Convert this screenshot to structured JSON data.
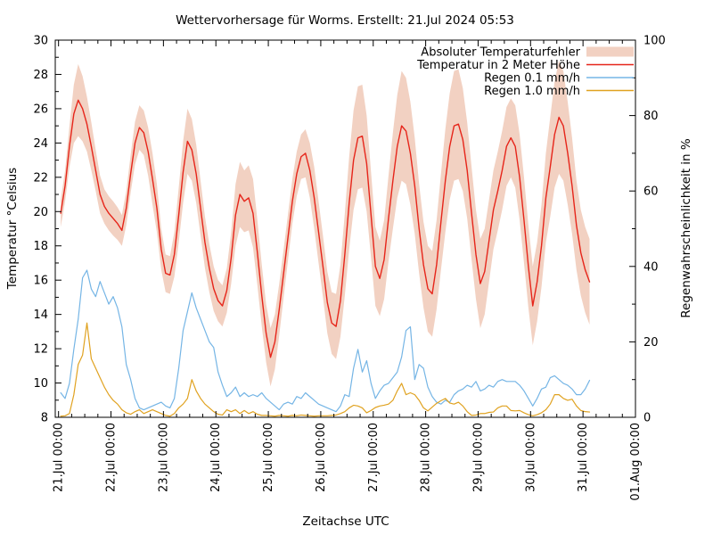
{
  "chart_data": {
    "type": "line",
    "title": "Wettervorhersage für Worms. Erstellt: 21.Jul 2024 05:53",
    "xlabel": "Zeitachse UTC",
    "ylabel_left": "Temperatur °Celsius",
    "ylabel_right": "Regenwahrscheinlichkeit in %",
    "x_tick_labels": [
      "21.Jul 00:00",
      "22.Jul 00:00",
      "23.Jul 00:00",
      "24.Jul 00:00",
      "25.Jul 00:00",
      "26.Jul 00:00",
      "27.Jul 00:00",
      "28.Jul 00:00",
      "29.Jul 00:00",
      "30.Jul 00:00",
      "31.Jul 00:00",
      "01.Aug 00:00"
    ],
    "x_major_step_hours": 24,
    "x_minor_step_hours": 6,
    "x_range_hours": [
      -1.5,
      264
    ],
    "y_left_range": [
      8,
      30
    ],
    "y_left_ticks": [
      8,
      10,
      12,
      14,
      16,
      18,
      20,
      22,
      24,
      26,
      28,
      30
    ],
    "y_right_range": [
      0,
      100
    ],
    "y_right_ticks": [
      0,
      20,
      40,
      60,
      80,
      100
    ],
    "grid": false,
    "legend_position": "top-right-inside",
    "legend": [
      {
        "label": "Absoluter Temperaturfehler",
        "swatch": "band"
      },
      {
        "label": "Temperatur in 2 Meter Höhe",
        "swatch": "line",
        "series": "temperature_c"
      },
      {
        "label": "Regen 0.1 mm/h",
        "swatch": "line",
        "series": "rain_01_pct"
      },
      {
        "label": "Regen 1.0 mm/h",
        "swatch": "line",
        "series": "rain_10_pct"
      }
    ],
    "colors": {
      "error_band": "#f2d1c2",
      "temperature": "#e6251a",
      "rain01": "#75b5e5",
      "rain10": "#e0a220",
      "axis": "#000000",
      "background": "#ffffff"
    },
    "series": {
      "hours_from_21jul": [
        1,
        3,
        5,
        7,
        9,
        11,
        13,
        15,
        17,
        19,
        21,
        23,
        25,
        27,
        29,
        31,
        33,
        35,
        37,
        39,
        41,
        43,
        45,
        47,
        49,
        51,
        53,
        55,
        57,
        59,
        61,
        63,
        65,
        67,
        69,
        71,
        73,
        75,
        77,
        79,
        81,
        83,
        85,
        87,
        89,
        91,
        93,
        95,
        97,
        99,
        101,
        103,
        105,
        107,
        109,
        111,
        113,
        115,
        117,
        119,
        121,
        123,
        125,
        127,
        129,
        131,
        133,
        135,
        137,
        139,
        141,
        143,
        145,
        147,
        149,
        151,
        153,
        155,
        157,
        159,
        161,
        163,
        165,
        167,
        169,
        171,
        173,
        175,
        177,
        179,
        181,
        183,
        185,
        187,
        189,
        191,
        193,
        195,
        197,
        199,
        201,
        203,
        205,
        207,
        209,
        211,
        213,
        215,
        217,
        219,
        221,
        223,
        225,
        227,
        229,
        231,
        233,
        235,
        237,
        239,
        241,
        243
      ],
      "temperature_c": [
        19.9,
        21.5,
        23.8,
        25.7,
        26.5,
        26.0,
        25.1,
        23.8,
        22.4,
        21.0,
        20.3,
        19.9,
        19.6,
        19.3,
        18.9,
        20.2,
        22.2,
        24.0,
        24.9,
        24.6,
        23.5,
        21.9,
        20.2,
        17.8,
        16.4,
        16.3,
        17.5,
        19.8,
        22.3,
        24.1,
        23.6,
        22.2,
        20.2,
        18.2,
        16.7,
        15.5,
        14.8,
        14.5,
        15.4,
        17.3,
        19.8,
        21.0,
        20.6,
        20.8,
        19.9,
        17.6,
        15.1,
        12.9,
        11.5,
        12.4,
        14.3,
        16.4,
        18.5,
        20.6,
        22.2,
        23.2,
        23.4,
        22.4,
        20.8,
        18.8,
        16.8,
        14.7,
        13.5,
        13.3,
        14.8,
        17.5,
        20.5,
        23.0,
        24.3,
        24.4,
        22.8,
        19.8,
        16.8,
        16.1,
        17.2,
        19.6,
        21.8,
        23.8,
        25.0,
        24.7,
        23.4,
        21.5,
        19.0,
        16.9,
        15.5,
        15.2,
        16.9,
        19.4,
        21.8,
        23.8,
        25.0,
        25.1,
        24.2,
        22.4,
        19.9,
        17.5,
        15.8,
        16.5,
        18.3,
        20.1,
        21.2,
        22.4,
        23.8,
        24.3,
        23.8,
        22.0,
        19.5,
        16.8,
        14.5,
        15.9,
        18.0,
        20.8,
        22.6,
        24.5,
        25.5,
        25.0,
        23.4,
        21.5,
        19.2,
        17.6,
        16.6,
        15.9
      ],
      "temperature_error_halfwidth_c": [
        0.8,
        0.9,
        1.2,
        1.7,
        2.1,
        1.9,
        1.6,
        1.4,
        1.2,
        1.1,
        1.0,
        1.0,
        1.0,
        0.95,
        0.9,
        1.0,
        1.1,
        1.25,
        1.3,
        1.3,
        1.4,
        1.5,
        1.4,
        1.2,
        1.1,
        1.1,
        1.3,
        1.6,
        1.8,
        1.9,
        1.8,
        1.7,
        1.6,
        1.5,
        1.4,
        1.3,
        1.2,
        1.2,
        1.3,
        1.5,
        1.8,
        1.9,
        1.8,
        1.9,
        2.0,
        1.9,
        1.8,
        1.7,
        1.7,
        1.6,
        1.5,
        1.4,
        1.35,
        1.3,
        1.3,
        1.3,
        1.4,
        1.6,
        1.8,
        1.8,
        1.8,
        1.8,
        1.8,
        1.9,
        2.1,
        2.4,
        2.7,
        2.9,
        3.0,
        3.0,
        2.8,
        2.5,
        2.3,
        2.2,
        2.3,
        2.5,
        2.8,
        3.0,
        3.2,
        3.1,
        3.0,
        2.8,
        2.6,
        2.5,
        2.5,
        2.5,
        2.6,
        2.8,
        3.0,
        3.1,
        3.2,
        3.2,
        3.0,
        2.8,
        2.7,
        2.6,
        2.6,
        2.5,
        2.4,
        2.3,
        2.3,
        2.3,
        2.3,
        2.3,
        2.4,
        2.5,
        2.5,
        2.4,
        2.3,
        2.3,
        2.4,
        2.6,
        2.9,
        3.1,
        3.3,
        3.2,
        3.0,
        2.8,
        2.6,
        2.5,
        2.5,
        2.5
      ],
      "rain_01_pct": [
        6.5,
        5,
        9,
        18,
        26,
        37,
        39,
        34,
        32,
        36,
        33,
        30,
        32,
        29,
        24,
        14,
        10,
        5,
        2.5,
        2,
        2.5,
        3,
        3.5,
        4,
        3,
        2.5,
        5,
        13,
        23,
        28,
        33,
        29,
        26,
        23,
        20,
        18.5,
        12,
        8.5,
        5.5,
        6.5,
        8,
        5.5,
        6.5,
        5.5,
        6,
        5.5,
        6.5,
        5,
        4,
        3,
        2,
        3.5,
        4,
        3.5,
        5.5,
        5,
        6.5,
        5.5,
        4.5,
        3.5,
        3,
        2.5,
        2,
        1.5,
        3,
        6,
        5.5,
        13,
        18,
        12,
        15,
        9,
        5,
        7,
        8.5,
        9,
        10.5,
        12,
        16,
        23,
        24,
        10,
        14,
        13,
        8,
        5.5,
        4,
        3.5,
        4.5,
        4,
        6,
        7,
        7.5,
        8.5,
        8,
        9.5,
        7,
        7.5,
        8.5,
        8,
        9.5,
        10,
        9.5,
        9.5,
        9.5,
        8.5,
        7,
        5,
        3,
        5,
        7.5,
        8,
        10.5,
        11,
        10,
        9,
        8.5,
        7.5,
        6,
        6,
        7.5,
        9.8
      ],
      "rain_10_pct": [
        0.3,
        0.4,
        1,
        6,
        14,
        16.5,
        25,
        15.5,
        13,
        10.5,
        8,
        6,
        4.5,
        3.5,
        2,
        1.2,
        0.8,
        1.5,
        2,
        1,
        1.5,
        2,
        1.5,
        1,
        0.5,
        0.3,
        1,
        2.5,
        3.5,
        5,
        10,
        7,
        5,
        3.5,
        2.5,
        1.5,
        0.8,
        0.6,
        2,
        1.5,
        2,
        1,
        1.8,
        1,
        1.5,
        0.8,
        0.5,
        0.5,
        0.4,
        0.3,
        0.5,
        0.4,
        0.3,
        0.5,
        0.4,
        0.6,
        0.5,
        0.4,
        0.3,
        0.4,
        0.4,
        0.4,
        0.5,
        0.6,
        1,
        1.5,
        2.5,
        3.2,
        3,
        2.5,
        1.2,
        1.8,
        2.6,
        3,
        3.2,
        3.5,
        4.5,
        7,
        9,
        6,
        6.5,
        6,
        4.5,
        2.5,
        1.7,
        2.7,
        3.7,
        4.4,
        5,
        3.8,
        3.5,
        4,
        3,
        1.5,
        0.5,
        0.6,
        1,
        1,
        1.3,
        1.4,
        2.5,
        3,
        3,
        1.8,
        1.7,
        1.8,
        1.2,
        0.7,
        0.4,
        0.7,
        1.2,
        2,
        3.5,
        6,
        6,
        5,
        4.5,
        4.8,
        3,
        1.8,
        1.5,
        1.4
      ]
    }
  }
}
